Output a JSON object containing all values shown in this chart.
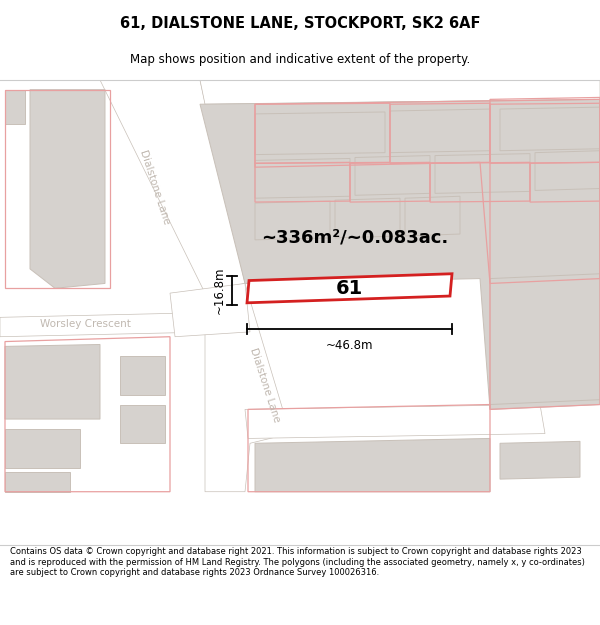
{
  "title": "61, DIALSTONE LANE, STOCKPORT, SK2 6AF",
  "subtitle": "Map shows position and indicative extent of the property.",
  "footer": "Contains OS data © Crown copyright and database right 2021. This information is subject to Crown copyright and database rights 2023 and is reproduced with the permission of HM Land Registry. The polygons (including the associated geometry, namely x, y co-ordinates) are subject to Crown copyright and database rights 2023 Ordnance Survey 100026316.",
  "area_label": "~336m²/~0.083ac.",
  "width_label": "~46.8m",
  "height_label": "~16.8m",
  "number_label": "61",
  "bg_color": "#eeebe8",
  "road_color": "#ffffff",
  "building_fill": "#d6d2ce",
  "building_stroke": "#c8c0b8",
  "highlight_fill": "#ffffff",
  "highlight_stroke": "#d42020",
  "plot_line_color": "#e8a0a0",
  "street_label_color": "#c0b8b0",
  "dim_color": "#222222",
  "title_color": "#000000",
  "footer_color": "#000000",
  "title_fontsize": 10.5,
  "subtitle_fontsize": 8.5,
  "footer_fontsize": 6.0,
  "area_fontsize": 13,
  "dim_fontsize": 8.5,
  "num_fontsize": 14
}
